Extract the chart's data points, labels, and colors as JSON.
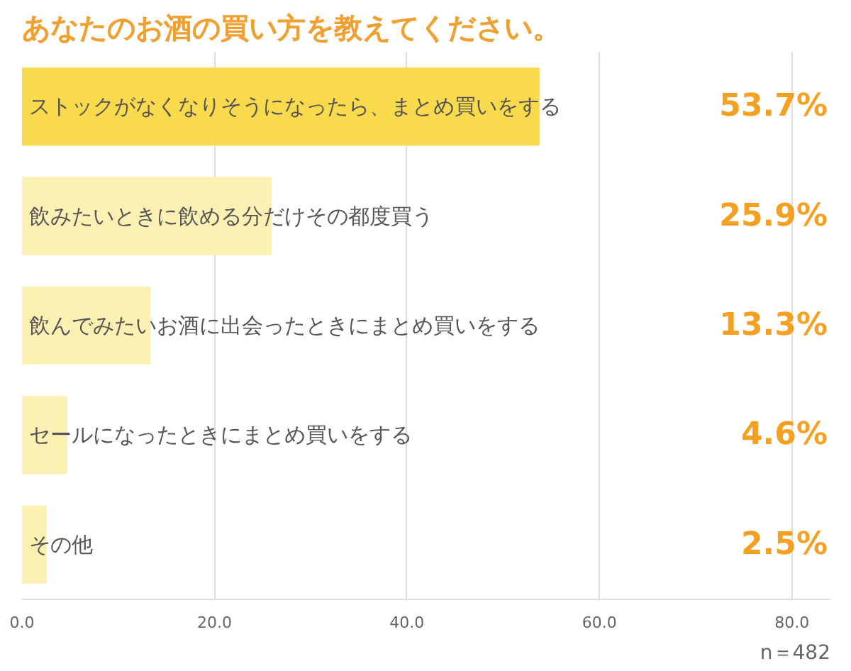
{
  "chart_data": {
    "type": "bar",
    "orientation": "horizontal",
    "title": "あなたのお酒の買い方を教えてください。",
    "categories": [
      "ストックがなくなりそうになったら、まとめ買いをする",
      "飲みたいときに飲める分だけその都度買う",
      "飲んでみたいお酒に出会ったときにまとめ買いをする",
      "セールになったときにまとめ買いをする",
      "その他"
    ],
    "values": [
      53.7,
      25.9,
      13.3,
      4.6,
      2.5
    ],
    "colors": [
      "#f9da4c",
      "#fdf0b3",
      "#fdf0b3",
      "#fdf0b3",
      "#fdf0b3"
    ],
    "value_labels": [
      "53.7%",
      "25.9%",
      "13.3%",
      "4.6%",
      "2.5%"
    ],
    "xlim": [
      0,
      84
    ],
    "xticks": [
      {
        "value": 0,
        "label": "0.0"
      },
      {
        "value": 20,
        "label": "20.0"
      },
      {
        "value": 40,
        "label": "40.0"
      },
      {
        "value": 60,
        "label": "60.0"
      },
      {
        "value": 80,
        "label": "80.0"
      }
    ],
    "grid": "x",
    "annotations": [
      "n＝482"
    ]
  }
}
